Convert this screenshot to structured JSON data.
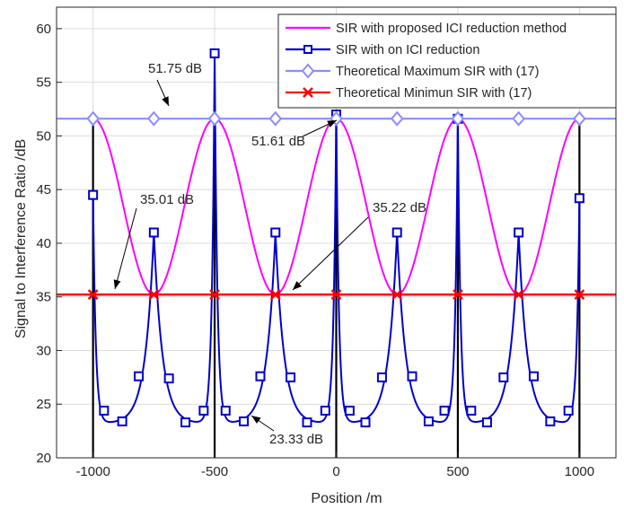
{
  "chart_data": {
    "type": "line",
    "xlabel": "Position /m",
    "ylabel": "Signal to Interference Ratio /dB",
    "xlim": [
      -1150,
      1150
    ],
    "ylim": [
      20,
      62
    ],
    "xticks": [
      -1000,
      -500,
      0,
      500,
      1000
    ],
    "yticks": [
      20,
      25,
      30,
      35,
      40,
      45,
      50,
      55,
      60
    ],
    "xtick_labels": [
      "-1000",
      "-500",
      "0",
      "500",
      "1000"
    ],
    "ytick_labels": [
      "20",
      "25",
      "30",
      "35",
      "40",
      "45",
      "50",
      "55",
      "60"
    ],
    "grid": true,
    "legend_position": "top-right",
    "series": [
      {
        "name": "SIR with proposed ICI reduction method",
        "color": "#ff00ff",
        "marker": "none",
        "description_of_shape": "periodic cosine, period 500 m, max at multiples of 500, min at odd multiples of 250",
        "max": 51.61,
        "min": 35.22,
        "period": 500
      },
      {
        "name": "SIR with on ICI reduction",
        "color": "#0000cc",
        "marker": "square",
        "spikes": [
          {
            "x": -1000,
            "y": 44.5
          },
          {
            "x": -500,
            "y": 57.7
          },
          {
            "x": 0,
            "y": 52.0
          },
          {
            "x": 500,
            "y": 51.6
          },
          {
            "x": 1000,
            "y": 44.2
          }
        ],
        "markers": [
          {
            "x": -1000,
            "y": 44.5
          },
          {
            "x": -955,
            "y": 24.4
          },
          {
            "x": -880,
            "y": 23.4
          },
          {
            "x": -812,
            "y": 27.6
          },
          {
            "x": -750,
            "y": 41.0
          },
          {
            "x": -688,
            "y": 27.4
          },
          {
            "x": -620,
            "y": 23.3
          },
          {
            "x": -545,
            "y": 24.4
          },
          {
            "x": -500,
            "y": 57.7
          },
          {
            "x": -455,
            "y": 24.4
          },
          {
            "x": -380,
            "y": 23.4
          },
          {
            "x": -312,
            "y": 27.6
          },
          {
            "x": -250,
            "y": 41.0
          },
          {
            "x": -188,
            "y": 27.5
          },
          {
            "x": -120,
            "y": 23.3
          },
          {
            "x": -45,
            "y": 24.4
          },
          {
            "x": 0,
            "y": 52.0
          },
          {
            "x": 55,
            "y": 24.4
          },
          {
            "x": 120,
            "y": 23.3
          },
          {
            "x": 188,
            "y": 27.5
          },
          {
            "x": 250,
            "y": 41.0
          },
          {
            "x": 312,
            "y": 27.6
          },
          {
            "x": 380,
            "y": 23.4
          },
          {
            "x": 445,
            "y": 24.4
          },
          {
            "x": 500,
            "y": 51.6
          },
          {
            "x": 555,
            "y": 24.4
          },
          {
            "x": 620,
            "y": 23.3
          },
          {
            "x": 688,
            "y": 27.5
          },
          {
            "x": 750,
            "y": 41.0
          },
          {
            "x": 812,
            "y": 27.6
          },
          {
            "x": 880,
            "y": 23.4
          },
          {
            "x": 955,
            "y": 24.4
          },
          {
            "x": 1000,
            "y": 44.2
          }
        ]
      },
      {
        "name": "Theoretical Maximum SIR with (17)",
        "color": "#8c8cff",
        "marker": "diamond",
        "y": 51.61,
        "marker_x": [
          -1000,
          -750,
          -500,
          -250,
          0,
          250,
          500,
          750,
          1000
        ]
      },
      {
        "name": "Theoretical Minimun SIR with (17)",
        "color": "#ff0000",
        "marker": "x",
        "y": 35.22,
        "marker_x": [
          -1000,
          -750,
          -500,
          -250,
          0,
          250,
          500,
          750,
          1000
        ]
      }
    ],
    "vertical_lines": {
      "color": "#000000",
      "x": [
        -1000,
        -500,
        0,
        500,
        1000
      ],
      "y_bottom": 20,
      "y_top": 51.61
    },
    "annotations": [
      {
        "text": "51.75 dB",
        "target": {
          "x": -760,
          "y": 51.75
        }
      },
      {
        "text": "51.61 dB",
        "target": {
          "x": -15,
          "y": 51.61
        }
      },
      {
        "text": "35.01 dB",
        "target": {
          "x": -1000,
          "y": 35.01
        }
      },
      {
        "text": "35.22 dB",
        "target": {
          "x": -250,
          "y": 35.22
        }
      },
      {
        "text": "23.33 dB",
        "target": {
          "x": -380,
          "y": 23.33
        }
      }
    ]
  }
}
